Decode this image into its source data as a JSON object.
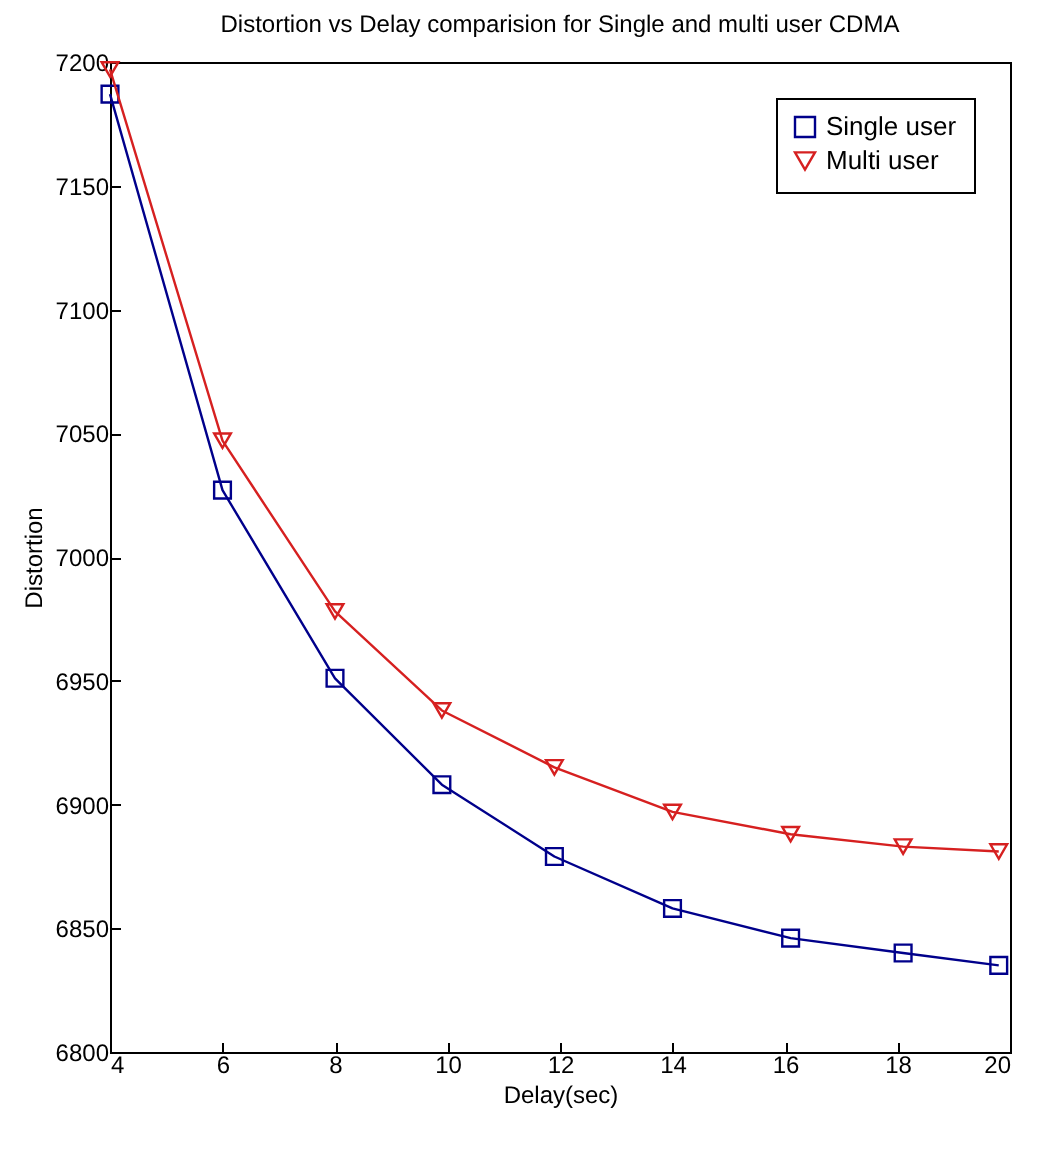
{
  "chart_data": {
    "type": "line",
    "title": "Distortion vs Delay comparision for Single and multi user CDMA",
    "xlabel": "Delay(sec)",
    "ylabel": "Distortion",
    "x": [
      4,
      6,
      8,
      9.9,
      11.9,
      14,
      16.1,
      18.1,
      19.8
    ],
    "series": [
      {
        "name": "Single user",
        "color": "#00008b",
        "marker": "square",
        "values": [
          7187,
          7027,
          6951,
          6908,
          6879,
          6858,
          6846,
          6840,
          6835
        ]
      },
      {
        "name": "Multi user",
        "color": "#d62020",
        "marker": "triangle",
        "values": [
          7197,
          7047,
          6978,
          6938,
          6915,
          6897,
          6888,
          6883,
          6881
        ]
      }
    ],
    "xlim": [
      4,
      20
    ],
    "xticks": [
      4,
      6,
      8,
      10,
      12,
      14,
      16,
      18,
      20
    ],
    "ylim": [
      6800,
      7200
    ],
    "yticks": [
      6800,
      6850,
      6900,
      6950,
      7000,
      7050,
      7100,
      7150,
      7200
    ],
    "grid": false,
    "legend": "top right",
    "line_style": "solid"
  }
}
